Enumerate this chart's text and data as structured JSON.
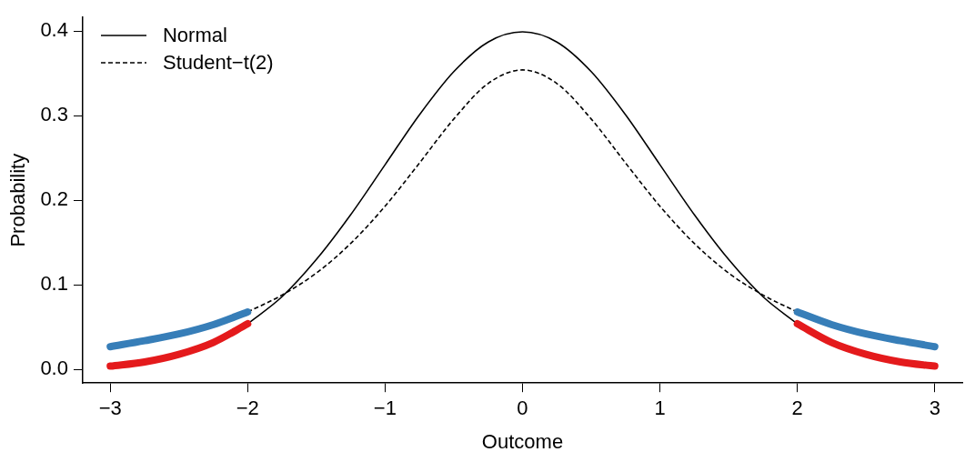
{
  "chart_data": {
    "type": "line",
    "xlabel": "Outcome",
    "ylabel": "Probability",
    "x": [
      -2,
      -1.75,
      -1.5,
      -1.25,
      -1,
      -0.75,
      -0.5,
      -0.25,
      0,
      0.25,
      0.5,
      0.75,
      1,
      1.25,
      1.5,
      1.75,
      2
    ],
    "series": [
      {
        "name": "Normal",
        "color": "#000000",
        "line_style": "solid",
        "values": [
          0.054,
          0.086,
          0.13,
          0.183,
          0.242,
          0.301,
          0.352,
          0.387,
          0.399,
          0.387,
          0.352,
          0.301,
          0.242,
          0.183,
          0.13,
          0.086,
          0.054
        ]
      },
      {
        "name": "Student−t(2)",
        "color": "#000000",
        "line_style": "dashed",
        "values": [
          0.068,
          0.088,
          0.114,
          0.149,
          0.193,
          0.244,
          0.296,
          0.338,
          0.354,
          0.338,
          0.296,
          0.244,
          0.193,
          0.149,
          0.114,
          0.088,
          0.068
        ]
      },
      {
        "color": "#e41a1c",
        "line_style": "solid",
        "x": [
          -3,
          -2.75,
          -2.5,
          -2.25,
          -2
        ],
        "values": [
          0.004,
          0.009,
          0.018,
          0.032,
          0.054
        ]
      },
      {
        "color": "#e41a1c",
        "line_style": "solid",
        "x": [
          2,
          2.25,
          2.5,
          2.75,
          3
        ],
        "values": [
          0.054,
          0.032,
          0.018,
          0.009,
          0.004
        ]
      },
      {
        "color": "#377eb8",
        "line_style": "solid",
        "x": [
          -3,
          -2.75,
          -2.5,
          -2.25,
          -2
        ],
        "values": [
          0.027,
          0.034,
          0.042,
          0.053,
          0.068
        ]
      },
      {
        "color": "#377eb8",
        "line_style": "solid",
        "x": [
          2,
          2.25,
          2.5,
          2.75,
          3
        ],
        "values": [
          0.068,
          0.053,
          0.042,
          0.034,
          0.027
        ]
      }
    ],
    "xlim": [
      -3.2,
      3.2
    ],
    "ylim": [
      -0.016,
      0.416
    ],
    "xticks": [
      {
        "value": -3,
        "label": "−3"
      },
      {
        "value": -2,
        "label": "−2"
      },
      {
        "value": -1,
        "label": "−1"
      },
      0,
      1,
      2,
      3
    ],
    "yticks": [
      {
        "value": 0,
        "label": "0.0"
      },
      0.1,
      0.2,
      0.3,
      0.4
    ],
    "grid": false,
    "legend": "top left",
    "marker": "none"
  }
}
